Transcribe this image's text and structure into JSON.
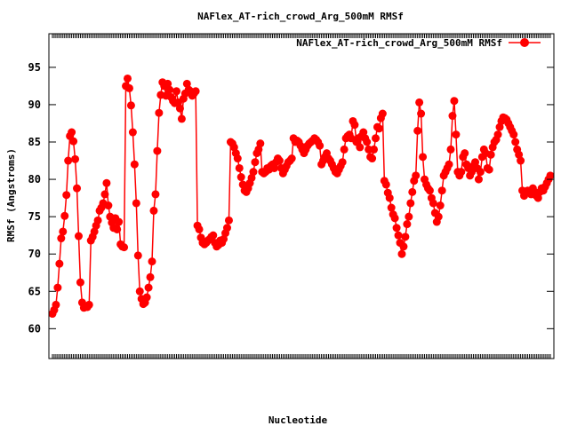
{
  "chart_data": {
    "type": "line",
    "title": "NAFlex_AT-rich_crowd_Arg_500mM RMSf",
    "xlabel": "Nucleotide",
    "ylabel": "RMSf (Angstroms)",
    "legend_position": "top-right",
    "grid": false,
    "ylim": [
      56,
      99.5
    ],
    "yticks": [
      60,
      65,
      70,
      75,
      80,
      85,
      90,
      95
    ],
    "series": [
      {
        "name": "NAFlex_AT-rich_crowd_Arg_500mM RMSf",
        "color": "#ff0000",
        "marker": "circle",
        "values": [
          62.0,
          62.5,
          63.2,
          65.5,
          68.7,
          72.1,
          73.0,
          75.1,
          77.9,
          82.5,
          85.8,
          86.3,
          85.1,
          82.7,
          78.8,
          72.4,
          66.2,
          63.5,
          62.8,
          63.0,
          62.9,
          63.2,
          71.8,
          72.3,
          73.0,
          73.8,
          74.5,
          75.8,
          76.2,
          76.8,
          78.0,
          79.5,
          76.5,
          75.0,
          74.2,
          73.5,
          74.8,
          73.3,
          74.3,
          71.3,
          71.0,
          70.9,
          92.5,
          93.5,
          92.2,
          89.9,
          86.3,
          82.0,
          76.8,
          69.8,
          65.0,
          64.0,
          63.3,
          63.5,
          64.2,
          65.5,
          66.9,
          69.0,
          75.8,
          78.0,
          83.8,
          88.9,
          91.3,
          93.0,
          92.5,
          91.2,
          92.8,
          92.0,
          91.0,
          90.5,
          90.2,
          91.8,
          90.3,
          89.5,
          88.1,
          90.8,
          91.5,
          92.8,
          92.0,
          91.8,
          91.2,
          91.5,
          91.8,
          73.8,
          73.3,
          72.2,
          71.5,
          71.3,
          71.5,
          71.8,
          72.0,
          72.3,
          72.5,
          71.5,
          71.0,
          71.2,
          71.8,
          71.5,
          72.0,
          72.8,
          73.5,
          74.5,
          85.0,
          84.8,
          84.3,
          83.5,
          82.8,
          81.5,
          80.3,
          79.3,
          78.5,
          78.3,
          78.8,
          79.5,
          80.2,
          81.0,
          82.3,
          83.5,
          84.0,
          84.8,
          81.0,
          80.8,
          81.0,
          81.5,
          81.3,
          81.8,
          82.0,
          81.5,
          82.3,
          82.8,
          82.5,
          81.5,
          80.8,
          81.3,
          81.8,
          82.3,
          82.5,
          82.8,
          85.5,
          85.0,
          85.2,
          85.0,
          84.5,
          84.0,
          83.5,
          84.0,
          84.5,
          84.8,
          85.0,
          85.2,
          85.5,
          85.3,
          85.0,
          84.5,
          82.0,
          82.5,
          83.0,
          83.5,
          82.8,
          82.5,
          82.0,
          81.5,
          81.0,
          80.8,
          81.3,
          81.8,
          82.3,
          84.0,
          85.5,
          85.8,
          86.0,
          85.5,
          87.8,
          87.3,
          85.0,
          85.5,
          84.3,
          85.8,
          86.3,
          85.5,
          85.0,
          84.0,
          83.0,
          82.8,
          84.0,
          85.5,
          87.0,
          86.8,
          88.2,
          88.8,
          79.8,
          79.3,
          78.2,
          77.5,
          76.2,
          75.3,
          74.8,
          73.5,
          72.5,
          71.5,
          70.0,
          71.0,
          72.3,
          74.0,
          75.0,
          76.8,
          78.3,
          79.8,
          80.5,
          86.5,
          90.3,
          88.8,
          83.0,
          80.0,
          79.3,
          78.8,
          78.5,
          77.5,
          76.8,
          75.5,
          74.3,
          75.0,
          76.5,
          78.5,
          80.5,
          81.0,
          81.5,
          82.0,
          84.0,
          88.5,
          90.5,
          86.0,
          81.0,
          80.5,
          81.0,
          83.0,
          83.5,
          82.0,
          81.5,
          80.5,
          81.0,
          81.8,
          82.3,
          81.5,
          80.0,
          81.0,
          83.0,
          84.0,
          83.5,
          81.5,
          81.3,
          83.3,
          84.3,
          85.0,
          85.3,
          86.0,
          87.0,
          87.8,
          88.3,
          88.2,
          88.0,
          87.5,
          87.0,
          86.5,
          86.0,
          85.0,
          84.0,
          83.3,
          82.5,
          78.5,
          77.8,
          78.3,
          78.5,
          78.3,
          78.0,
          78.8,
          78.3,
          77.8,
          77.5,
          78.3,
          78.8,
          78.5,
          79.0,
          79.5,
          80.0,
          80.5
        ]
      }
    ]
  }
}
